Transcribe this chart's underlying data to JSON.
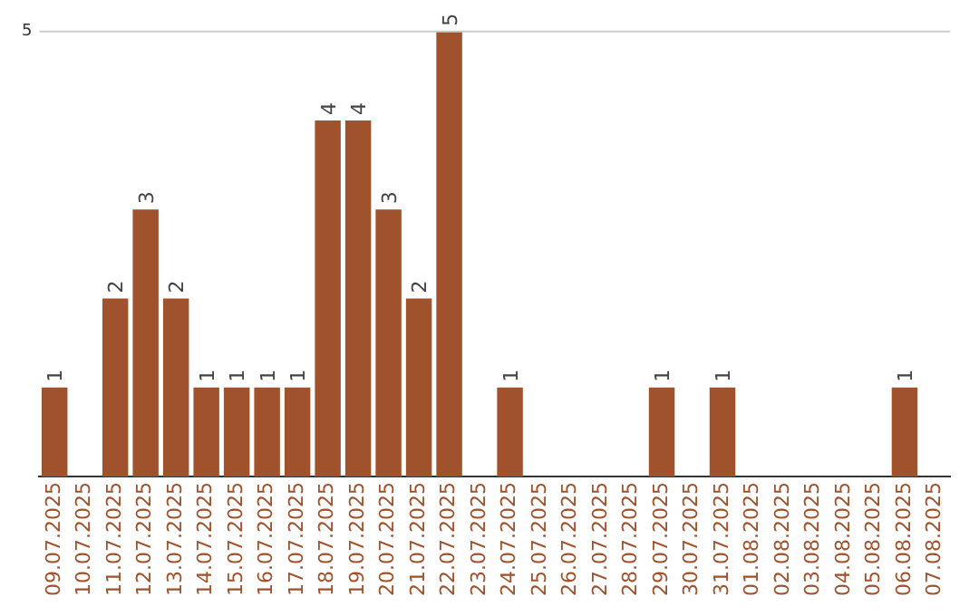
{
  "chart_data": {
    "type": "bar",
    "categories": [
      "09.07.2025",
      "10.07.2025",
      "11.07.2025",
      "12.07.2025",
      "13.07.2025",
      "14.07.2025",
      "15.07.2025",
      "16.07.2025",
      "17.07.2025",
      "18.07.2025",
      "19.07.2025",
      "20.07.2025",
      "21.07.2025",
      "22.07.2025",
      "23.07.2025",
      "24.07.2025",
      "25.07.2025",
      "26.07.2025",
      "27.07.2025",
      "28.07.2025",
      "29.07.2025",
      "30.07.2025",
      "31.07.2025",
      "01.08.2025",
      "02.08.2025",
      "03.08.2025",
      "04.08.2025",
      "05.08.2025",
      "06.08.2025",
      "07.08.2025"
    ],
    "values": [
      1,
      0,
      2,
      3,
      2,
      1,
      1,
      1,
      1,
      4,
      4,
      3,
      2,
      5,
      0,
      1,
      0,
      0,
      0,
      0,
      1,
      0,
      1,
      0,
      0,
      0,
      0,
      0,
      1,
      0
    ],
    "value_labels": [
      "1",
      null,
      "2",
      "3",
      "2",
      "1",
      "1",
      "1",
      "1",
      "4",
      "4",
      "3",
      "2",
      "5",
      null,
      "1",
      null,
      null,
      null,
      null,
      "1",
      null,
      "1",
      null,
      null,
      null,
      null,
      null,
      "1",
      null
    ],
    "color": "#a0522d",
    "ylim": [
      0,
      5
    ],
    "yticks": [
      5
    ],
    "ref_lines": [
      {
        "axis": "y",
        "value": 5,
        "color": "#cccccc"
      }
    ],
    "legend": false
  }
}
